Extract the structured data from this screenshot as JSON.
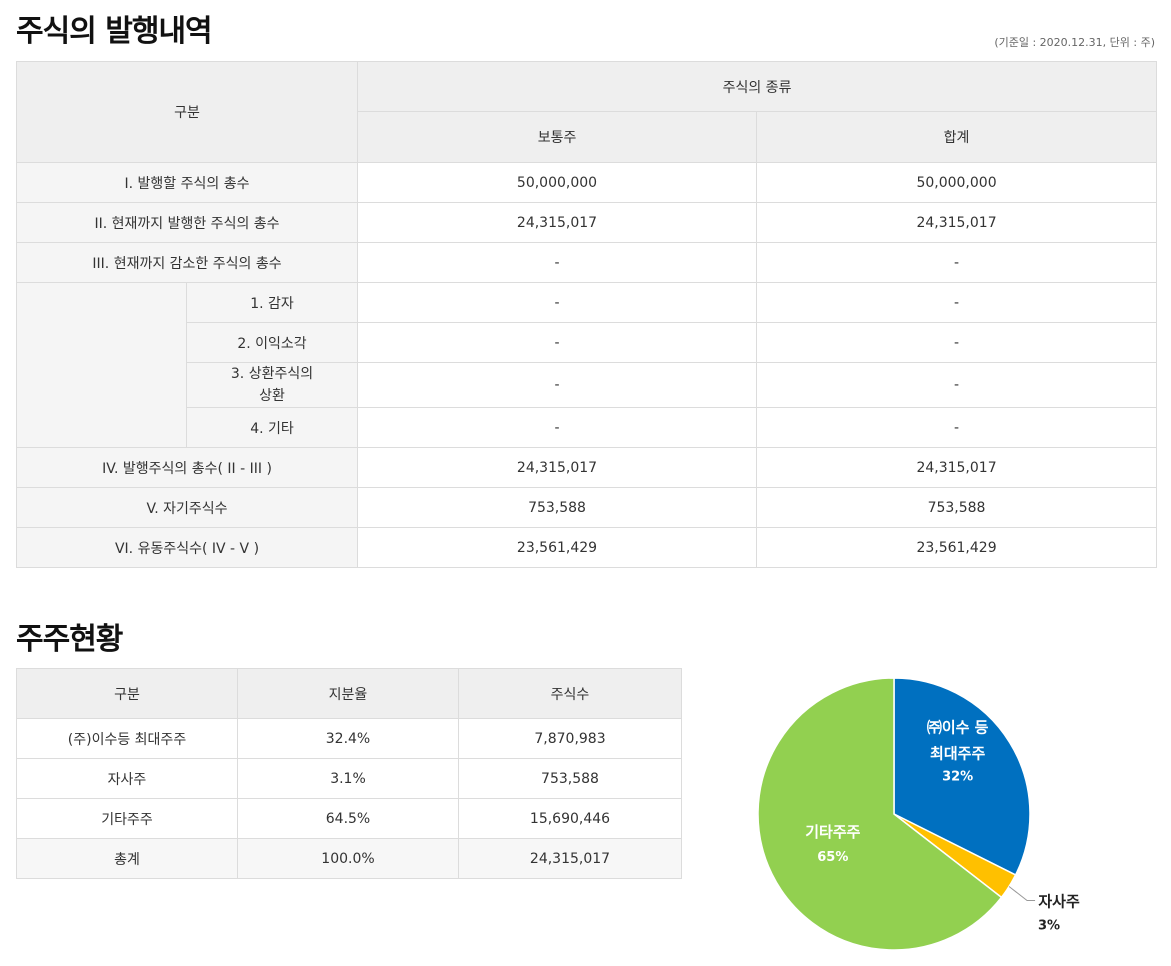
{
  "issuance": {
    "title": "주식의 발행내역",
    "note": "(기준일 : 2020.12.31, 단위 : 주)",
    "header": {
      "category": "구분",
      "type_group": "주식의 종류",
      "common": "보통주",
      "total": "합계"
    },
    "rows": [
      {
        "label": "I. 발행할 주식의 총수",
        "common": "50,000,000",
        "total": "50,000,000"
      },
      {
        "label": "II. 현재까지 발행한 주식의 총수",
        "common": "24,315,017",
        "total": "24,315,017"
      },
      {
        "label": "III. 현재까지 감소한 주식의 총수",
        "common": "-",
        "total": "-"
      },
      {
        "label": "1. 감자",
        "common": "-",
        "total": "-"
      },
      {
        "label": "2. 이익소각",
        "common": "-",
        "total": "-"
      },
      {
        "label": "3. 상환주식의 상환",
        "common": "-",
        "total": "-"
      },
      {
        "label": "4. 기타",
        "common": "-",
        "total": "-"
      },
      {
        "label": "IV. 발행주식의 총수( II - III )",
        "common": "24,315,017",
        "total": "24,315,017"
      },
      {
        "label": "V. 자기주식수",
        "common": "753,588",
        "total": "753,588"
      },
      {
        "label": "VI. 유동주식수( IV - V )",
        "common": "23,561,429",
        "total": "23,561,429"
      }
    ]
  },
  "shareholders": {
    "title": "주주현황",
    "header": {
      "category": "구분",
      "ratio": "지분율",
      "shares": "주식수"
    },
    "rows": [
      {
        "name": "(주)이수등 최대주주",
        "ratio": "32.4%",
        "shares": "7,870,983"
      },
      {
        "name": "자사주",
        "ratio": "3.1%",
        "shares": "753,588"
      },
      {
        "name": "기타주주",
        "ratio": "64.5%",
        "shares": "15,690,446"
      },
      {
        "name": "총계",
        "ratio": "100.0%",
        "shares": "24,315,017"
      }
    ]
  },
  "chart_data": {
    "type": "pie",
    "slices": [
      {
        "label_line1": "㈜이수 등",
        "label_line2": "최대주주",
        "pct_label": "32%",
        "value": 32.4,
        "color": "#0070c0"
      },
      {
        "label_line1": "자사주",
        "label_line2": "",
        "pct_label": "3%",
        "value": 3.1,
        "color": "#ffc000"
      },
      {
        "label_line1": "기타주주",
        "label_line2": "",
        "pct_label": "65%",
        "value": 64.5,
        "color": "#92d050"
      }
    ]
  }
}
